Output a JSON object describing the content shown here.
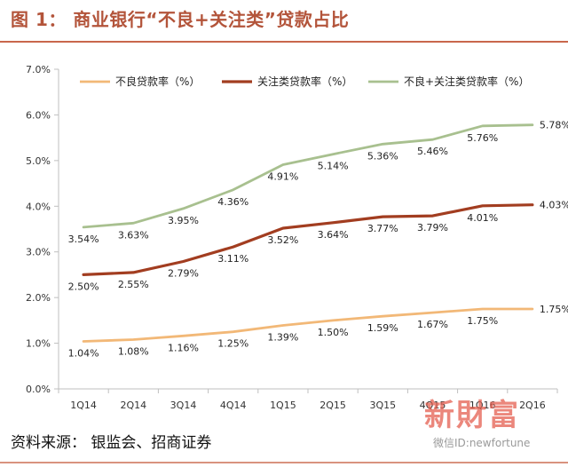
{
  "header": {
    "title": "图 1：  商业银行“不良+关注类”贷款占比"
  },
  "footer": {
    "source": "资料来源：  银监会、招商证券"
  },
  "watermark": {
    "logo": "新財富",
    "id": "微信ID:newfortune"
  },
  "chart_data": {
    "type": "line",
    "categories": [
      "1Q14",
      "2Q14",
      "3Q14",
      "4Q14",
      "1Q15",
      "2Q15",
      "3Q15",
      "4Q15",
      "1Q16",
      "2Q16"
    ],
    "ylim": [
      0,
      7
    ],
    "yticks": [
      "0.0%",
      "1.0%",
      "2.0%",
      "3.0%",
      "4.0%",
      "5.0%",
      "6.0%",
      "7.0%"
    ],
    "grid": false,
    "legend_position": "top",
    "series": [
      {
        "name": "不良贷款率（%）",
        "color": "#f2b877",
        "values": [
          1.04,
          1.08,
          1.16,
          1.25,
          1.39,
          1.5,
          1.59,
          1.67,
          1.75,
          1.75
        ],
        "labels": [
          "1.04%",
          "1.08%",
          "1.16%",
          "1.25%",
          "1.39%",
          "1.50%",
          "1.59%",
          "1.67%",
          "1.75%",
          "1.75%"
        ]
      },
      {
        "name": "关注类贷款率（%）",
        "color": "#a23d20",
        "values": [
          2.5,
          2.55,
          2.79,
          3.11,
          3.52,
          3.64,
          3.77,
          3.79,
          4.01,
          4.03
        ],
        "labels": [
          "2.50%",
          "2.55%",
          "2.79%",
          "3.11%",
          "3.52%",
          "3.64%",
          "3.77%",
          "3.79%",
          "4.01%",
          "4.03%"
        ]
      },
      {
        "name": "不良+关注类贷款率（%）",
        "color": "#a8c08f",
        "values": [
          3.54,
          3.63,
          3.95,
          4.36,
          4.91,
          5.14,
          5.36,
          5.46,
          5.76,
          5.78
        ],
        "labels": [
          "3.54%",
          "3.63%",
          "3.95%",
          "4.36%",
          "4.91%",
          "5.14%",
          "5.36%",
          "5.46%",
          "5.76%",
          "5.78%"
        ]
      }
    ]
  }
}
